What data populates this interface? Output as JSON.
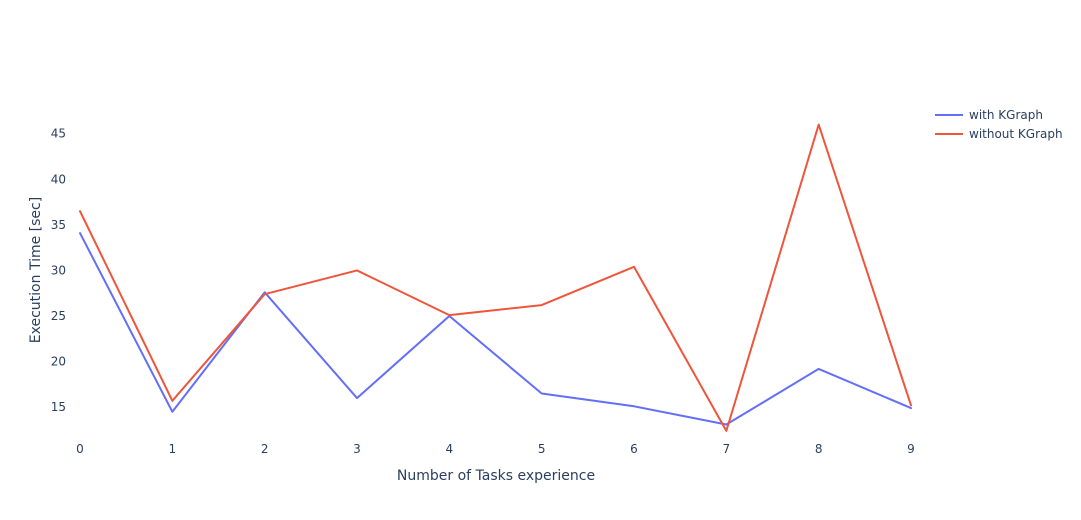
{
  "chart_data": {
    "type": "line",
    "title": "",
    "xlabel": "Number of Tasks experience",
    "ylabel": "Execution Time [sec]",
    "x": [
      0,
      1,
      2,
      3,
      4,
      5,
      6,
      7,
      8,
      9
    ],
    "x_ticks": [
      "0",
      "1",
      "2",
      "3",
      "4",
      "5",
      "6",
      "7",
      "8",
      "9"
    ],
    "y_ticks": [
      "15",
      "20",
      "25",
      "30",
      "35",
      "40",
      "45"
    ],
    "y_tick_values": [
      15,
      20,
      25,
      30,
      35,
      40,
      45
    ],
    "xlim": [
      0,
      9
    ],
    "ylim": [
      11.4,
      48.7
    ],
    "grid": false,
    "legend_position": "top-right",
    "series": [
      {
        "name": "with KGraph",
        "color": "#636efa",
        "values": [
          34.1,
          14.5,
          27.6,
          16.0,
          25.0,
          16.5,
          15.1,
          13.1,
          19.2,
          14.9
        ]
      },
      {
        "name": "without KGraph",
        "color": "#ef553b",
        "values": [
          36.5,
          15.7,
          27.4,
          30.0,
          25.1,
          26.2,
          30.4,
          12.4,
          46.0,
          15.2
        ]
      }
    ]
  }
}
